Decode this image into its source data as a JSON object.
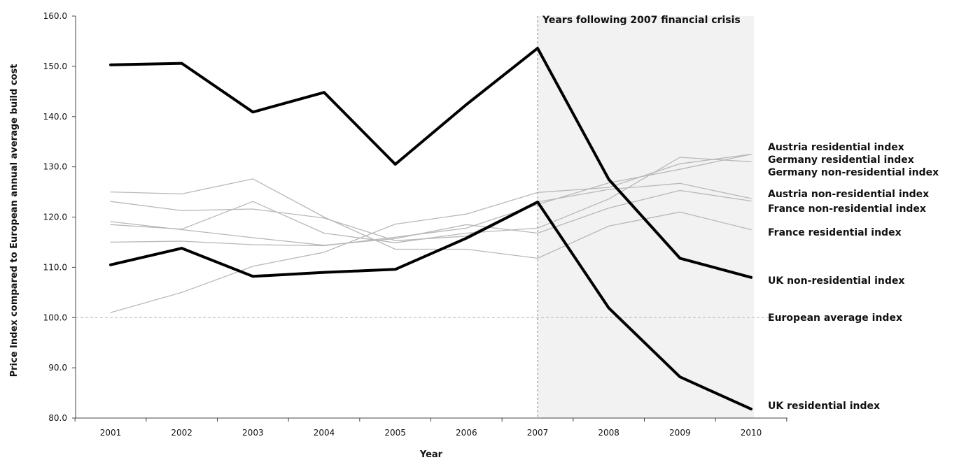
{
  "chart_data": {
    "type": "line",
    "title": "",
    "xlabel": "Year",
    "ylabel": "Price Index compared to European annual average build cost",
    "ylim": [
      80,
      160
    ],
    "y_ticks": [
      "80.0",
      "90.0",
      "100.0",
      "110.0",
      "120.0",
      "130.0",
      "140.0",
      "150.0",
      "160.0"
    ],
    "categories": [
      "2001",
      "2002",
      "2003",
      "2004",
      "2005",
      "2006",
      "2007",
      "2008",
      "2009",
      "2010"
    ],
    "grid": false,
    "legend": "direct labels at right end of each line",
    "shaded_region": {
      "from": "2007",
      "to": "2010",
      "label": "Years following 2007 financial crisis",
      "color": "#f2f2f2"
    },
    "series": [
      {
        "name": "UK residential index",
        "style": "bold",
        "color": "#000000",
        "values": [
          110.5,
          113.8,
          108.2,
          109.0,
          109.6,
          115.8,
          123.0,
          101.9,
          88.2,
          81.8
        ]
      },
      {
        "name": "UK non-residential index",
        "style": "bold",
        "color": "#000000",
        "values": [
          150.3,
          150.6,
          140.9,
          144.8,
          130.5,
          142.4,
          153.6,
          127.5,
          111.8,
          108.0
        ]
      },
      {
        "name": "Austria residential index",
        "style": "thin",
        "color": "#b8b8b8",
        "values": [
          101.0,
          105.0,
          110.2,
          113.0,
          118.6,
          120.6,
          124.9,
          125.9,
          130.6,
          132.5
        ]
      },
      {
        "name": "Germany residential index",
        "style": "thin",
        "color": "#b8b8b8",
        "values": [
          118.5,
          117.6,
          123.1,
          116.8,
          114.9,
          116.8,
          117.8,
          123.6,
          131.9,
          131.0
        ]
      },
      {
        "name": "Germany non-residential index",
        "style": "thin",
        "color": "#b8b8b8",
        "values": [
          115.0,
          115.2,
          114.5,
          114.3,
          116.0,
          117.8,
          122.5,
          126.8,
          129.5,
          132.5
        ]
      },
      {
        "name": "Austria non-residential index",
        "style": "thin",
        "color": "#b8b8b8",
        "values": [
          123.1,
          121.3,
          121.6,
          119.8,
          115.3,
          116.2,
          123.0,
          125.5,
          126.7,
          123.7
        ]
      },
      {
        "name": "France non-residential index",
        "style": "thin",
        "color": "#b8b8b8",
        "values": [
          119.1,
          117.5,
          115.9,
          114.4,
          115.7,
          118.5,
          116.8,
          121.8,
          125.3,
          123.2
        ]
      },
      {
        "name": "France residential index",
        "style": "thin",
        "color": "#b8b8b8",
        "values": [
          125.0,
          124.6,
          127.6,
          120.0,
          113.6,
          113.6,
          111.8,
          118.2,
          121.0,
          117.5
        ]
      }
    ],
    "reference_line": {
      "name": "European average index",
      "value": 100.0,
      "style": "dashed",
      "color": "#bbbbbb"
    },
    "end_labels": [
      "Austria residential index",
      "Germany residential index",
      "Germany non-residential index",
      "Austria non-residential index",
      "France non-residential index",
      "France residential index",
      "UK non-residential index",
      "European average index",
      "UK residential index"
    ]
  }
}
